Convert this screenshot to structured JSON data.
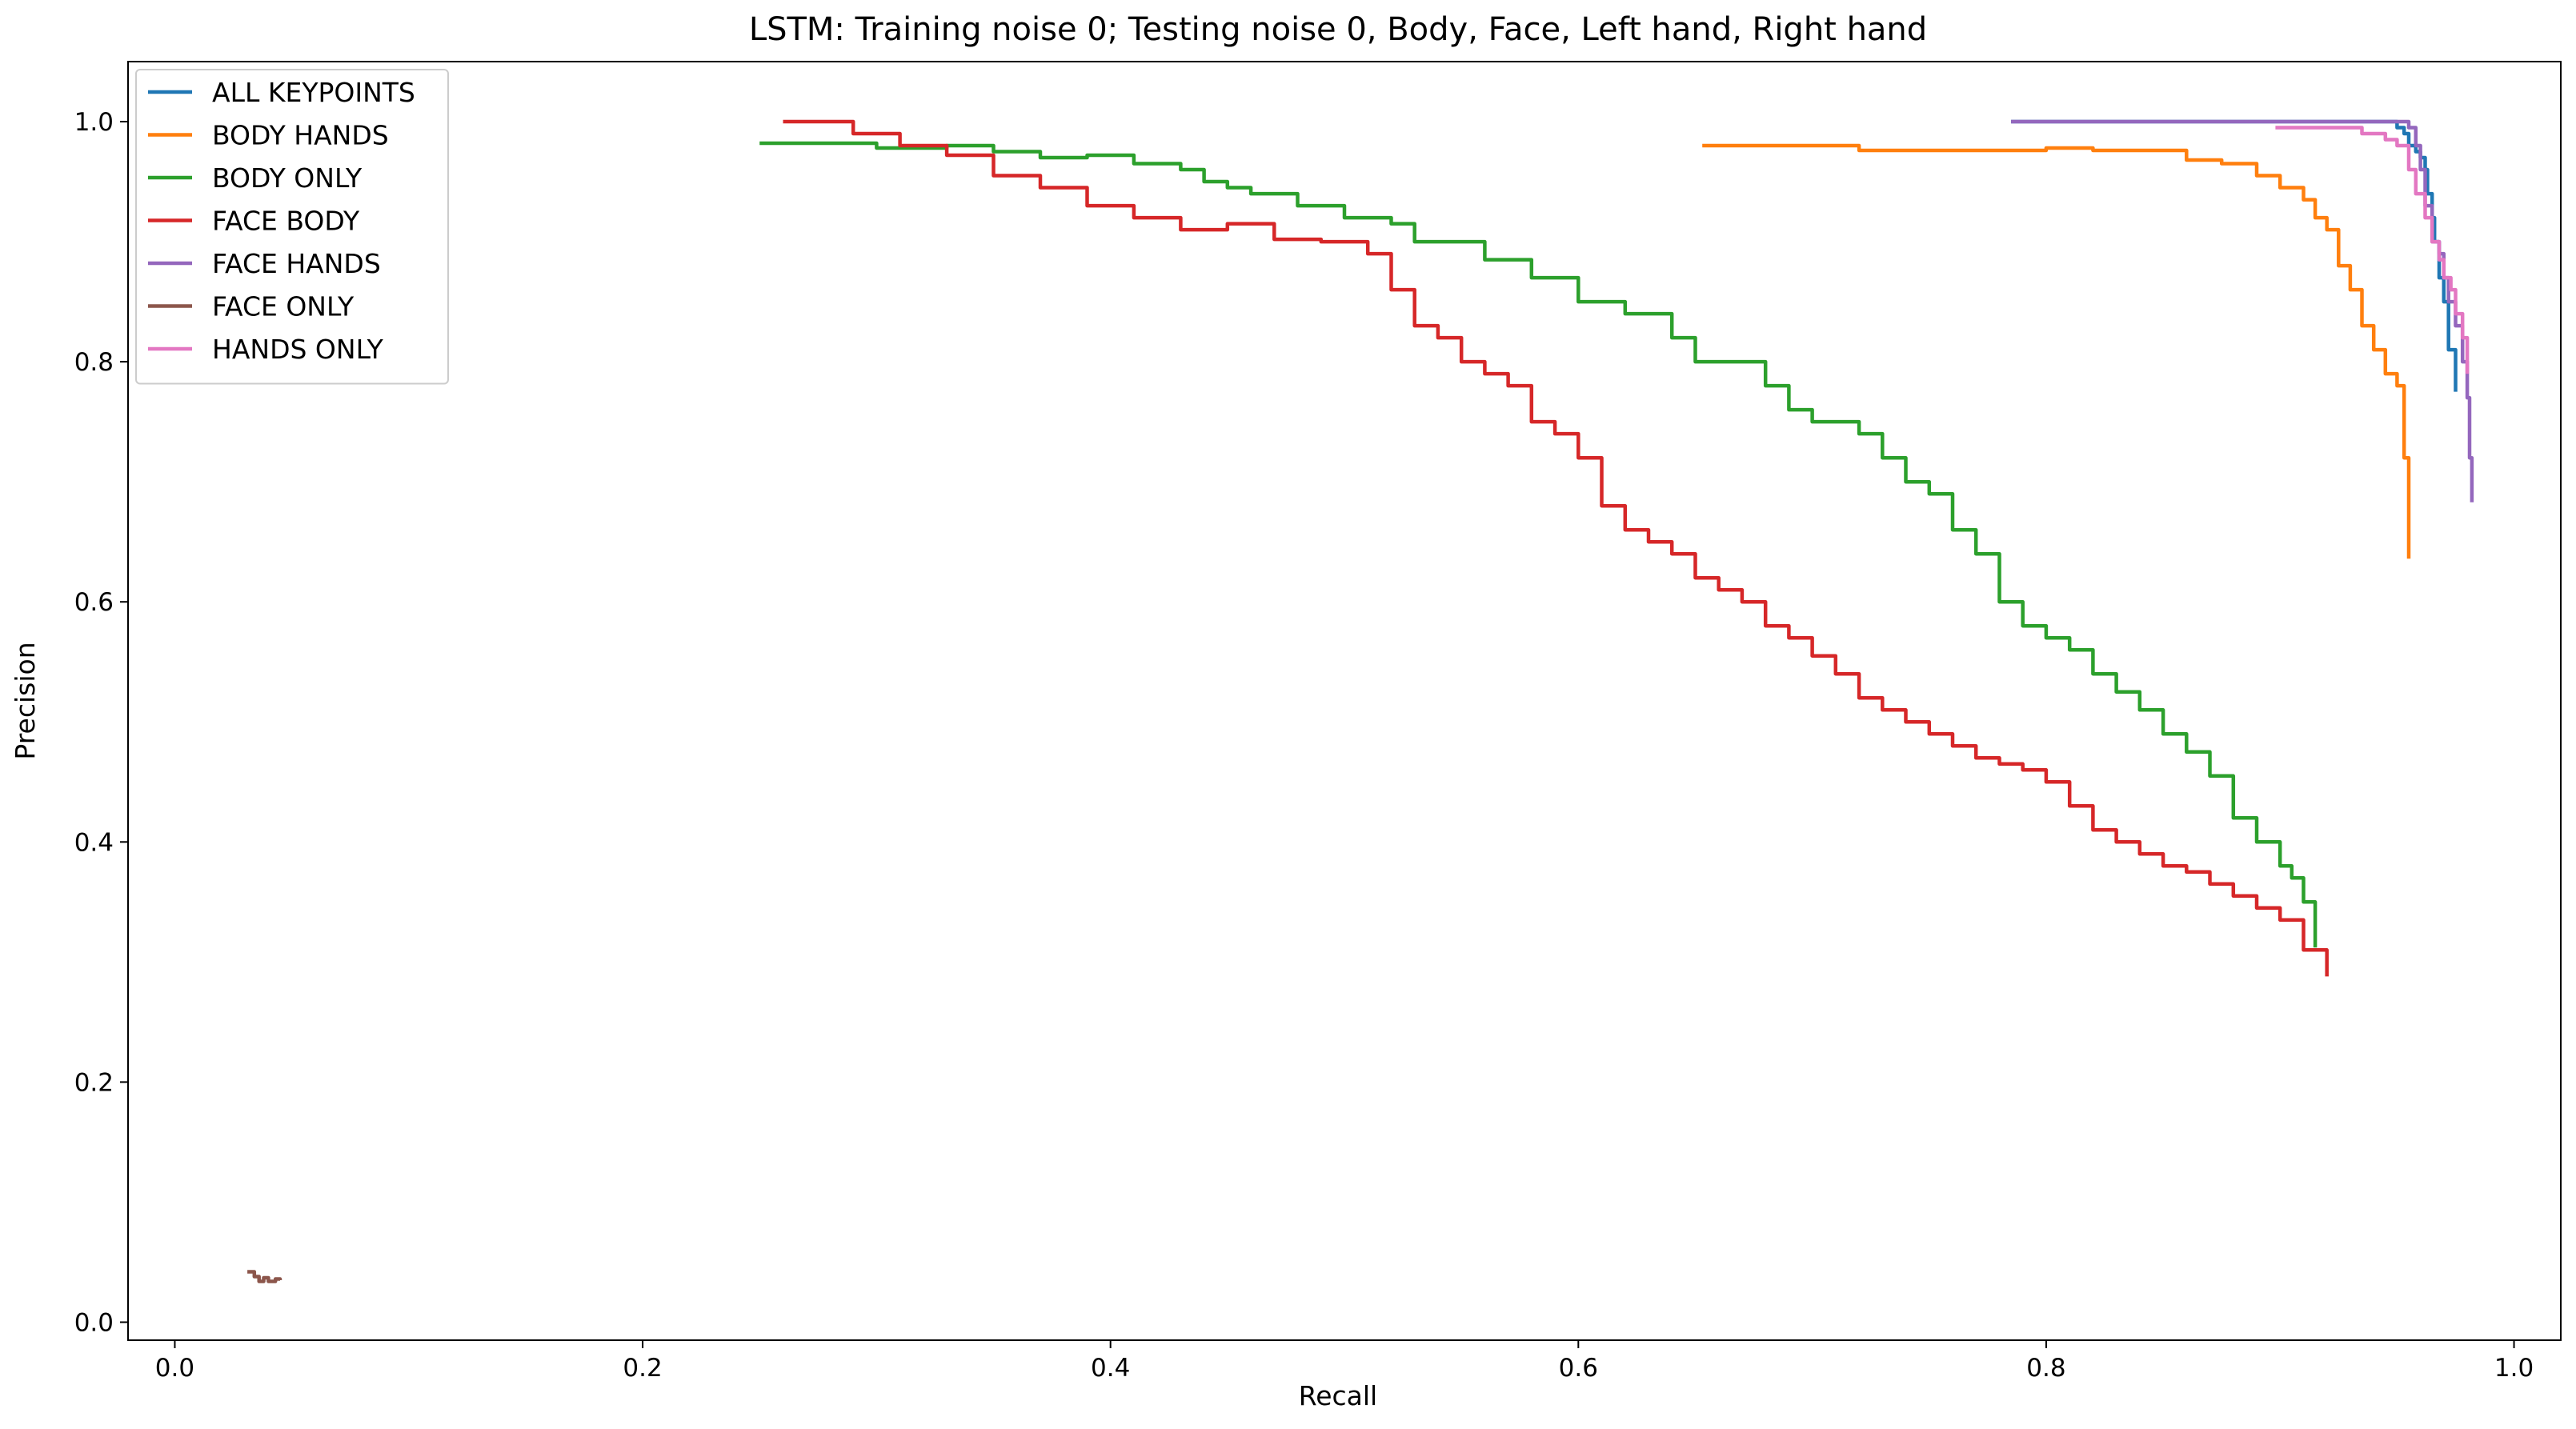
{
  "chart_data": {
    "type": "line",
    "title": "LSTM: Training noise 0; Testing noise 0, Body, Face, Left hand, Right hand",
    "xlabel": "Recall",
    "ylabel": "Precision",
    "xlim": [
      -0.02,
      1.02
    ],
    "ylim": [
      -0.015,
      1.05
    ],
    "xticks": [
      0.0,
      0.2,
      0.4,
      0.6,
      0.8,
      1.0
    ],
    "xtick_labels": [
      "0.0",
      "0.2",
      "0.4",
      "0.6",
      "0.8",
      "1.0"
    ],
    "yticks": [
      0.0,
      0.2,
      0.4,
      0.6,
      0.8,
      1.0
    ],
    "ytick_labels": [
      "0.0",
      "0.2",
      "0.4",
      "0.6",
      "0.8",
      "1.0"
    ],
    "grid": false,
    "legend_position": "top-left",
    "series": [
      {
        "name": "ALL KEYPOINTS",
        "color": "#1f77b4",
        "x": [
          0.785,
          0.85,
          0.9,
          0.94,
          0.948,
          0.95,
          0.953,
          0.955,
          0.958,
          0.96,
          0.962,
          0.963,
          0.965,
          0.966,
          0.968,
          0.97,
          0.972,
          0.975
        ],
        "y": [
          1.0,
          1.0,
          1.0,
          1.0,
          1.0,
          0.995,
          0.99,
          0.98,
          0.975,
          0.97,
          0.96,
          0.94,
          0.92,
          0.9,
          0.87,
          0.85,
          0.81,
          0.775
        ]
      },
      {
        "name": "BODY HANDS",
        "color": "#ff7f0e",
        "x": [
          0.653,
          0.72,
          0.8,
          0.82,
          0.84,
          0.86,
          0.875,
          0.89,
          0.9,
          0.91,
          0.915,
          0.92,
          0.925,
          0.93,
          0.935,
          0.94,
          0.945,
          0.95,
          0.953,
          0.953,
          0.955
        ],
        "y": [
          0.98,
          0.976,
          0.978,
          0.976,
          0.976,
          0.968,
          0.965,
          0.955,
          0.945,
          0.935,
          0.92,
          0.91,
          0.88,
          0.86,
          0.83,
          0.81,
          0.79,
          0.78,
          0.77,
          0.72,
          0.636
        ]
      },
      {
        "name": "BODY ONLY",
        "color": "#2ca02c",
        "x": [
          0.25,
          0.3,
          0.33,
          0.35,
          0.37,
          0.39,
          0.41,
          0.43,
          0.44,
          0.45,
          0.46,
          0.48,
          0.5,
          0.52,
          0.53,
          0.55,
          0.56,
          0.58,
          0.6,
          0.62,
          0.64,
          0.65,
          0.66,
          0.68,
          0.69,
          0.7,
          0.72,
          0.73,
          0.74,
          0.75,
          0.76,
          0.77,
          0.78,
          0.79,
          0.8,
          0.81,
          0.82,
          0.83,
          0.84,
          0.85,
          0.86,
          0.87,
          0.88,
          0.89,
          0.9,
          0.905,
          0.91,
          0.915
        ],
        "y": [
          0.982,
          0.978,
          0.98,
          0.975,
          0.97,
          0.972,
          0.965,
          0.96,
          0.95,
          0.945,
          0.94,
          0.93,
          0.92,
          0.915,
          0.9,
          0.9,
          0.885,
          0.87,
          0.85,
          0.84,
          0.82,
          0.8,
          0.8,
          0.78,
          0.76,
          0.75,
          0.74,
          0.72,
          0.7,
          0.69,
          0.66,
          0.64,
          0.6,
          0.58,
          0.57,
          0.56,
          0.54,
          0.525,
          0.51,
          0.49,
          0.475,
          0.455,
          0.42,
          0.4,
          0.38,
          0.37,
          0.35,
          0.312
        ]
      },
      {
        "name": "FACE BODY",
        "color": "#d62728",
        "x": [
          0.26,
          0.29,
          0.31,
          0.33,
          0.35,
          0.37,
          0.39,
          0.41,
          0.43,
          0.45,
          0.47,
          0.49,
          0.51,
          0.52,
          0.53,
          0.54,
          0.55,
          0.56,
          0.57,
          0.58,
          0.59,
          0.6,
          0.61,
          0.62,
          0.63,
          0.64,
          0.65,
          0.66,
          0.67,
          0.68,
          0.69,
          0.7,
          0.71,
          0.72,
          0.73,
          0.74,
          0.75,
          0.76,
          0.77,
          0.78,
          0.79,
          0.8,
          0.81,
          0.82,
          0.83,
          0.84,
          0.85,
          0.86,
          0.87,
          0.88,
          0.89,
          0.9,
          0.91,
          0.92
        ],
        "y": [
          1.0,
          0.99,
          0.98,
          0.972,
          0.955,
          0.945,
          0.93,
          0.92,
          0.91,
          0.915,
          0.902,
          0.9,
          0.89,
          0.86,
          0.83,
          0.82,
          0.8,
          0.79,
          0.78,
          0.75,
          0.74,
          0.72,
          0.68,
          0.66,
          0.65,
          0.64,
          0.62,
          0.61,
          0.6,
          0.58,
          0.57,
          0.555,
          0.54,
          0.52,
          0.51,
          0.5,
          0.49,
          0.48,
          0.47,
          0.465,
          0.46,
          0.45,
          0.43,
          0.41,
          0.4,
          0.39,
          0.38,
          0.375,
          0.365,
          0.355,
          0.345,
          0.335,
          0.31,
          0.288
        ]
      },
      {
        "name": "FACE HANDS",
        "color": "#9467bd",
        "x": [
          0.785,
          0.85,
          0.9,
          0.94,
          0.95,
          0.955,
          0.958,
          0.96,
          0.962,
          0.965,
          0.968,
          0.97,
          0.972,
          0.975,
          0.978,
          0.98,
          0.981,
          0.982
        ],
        "y": [
          1.0,
          1.0,
          1.0,
          1.0,
          1.0,
          0.995,
          0.98,
          0.96,
          0.93,
          0.9,
          0.89,
          0.87,
          0.85,
          0.83,
          0.8,
          0.77,
          0.72,
          0.683
        ]
      },
      {
        "name": "FACE ONLY",
        "color": "#8c564b",
        "x": [
          0.031,
          0.034,
          0.036,
          0.038,
          0.04,
          0.043,
          0.045
        ],
        "y": [
          0.042,
          0.038,
          0.034,
          0.037,
          0.034,
          0.036,
          0.035
        ]
      },
      {
        "name": "HANDS ONLY",
        "color": "#e377c2",
        "x": [
          0.898,
          0.92,
          0.935,
          0.945,
          0.95,
          0.955,
          0.958,
          0.962,
          0.965,
          0.968,
          0.97,
          0.973,
          0.975,
          0.978,
          0.98
        ],
        "y": [
          0.995,
          0.995,
          0.99,
          0.985,
          0.98,
          0.96,
          0.94,
          0.92,
          0.9,
          0.885,
          0.87,
          0.86,
          0.84,
          0.82,
          0.79
        ]
      }
    ]
  }
}
